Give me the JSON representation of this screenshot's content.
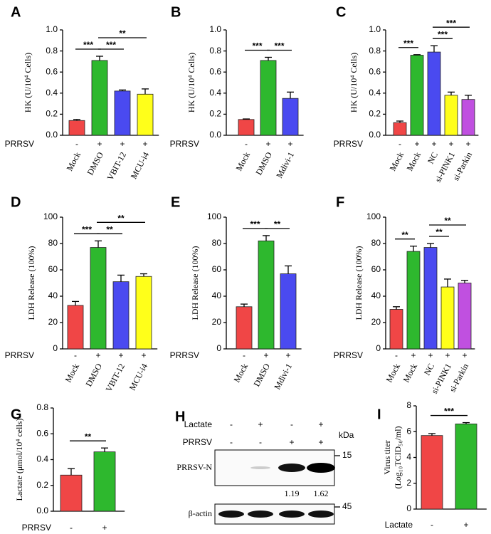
{
  "chart_data": [
    {
      "type": "bar",
      "panel_label": "A",
      "ylabel": "HK (U/10⁴ Cells)",
      "categories": [
        "Mock",
        "DMSO",
        "VBIT-12",
        "MCU-i4"
      ],
      "values": [
        0.14,
        0.71,
        0.42,
        0.39
      ],
      "errors": [
        0.01,
        0.04,
        0.01,
        0.05
      ],
      "colors": [
        "#f04646",
        "#2eb82e",
        "#4a4af0",
        "#ffff1a"
      ],
      "ylim": [
        0,
        1
      ],
      "yticks": [
        {
          "value": 0,
          "label": "0.0"
        },
        0.2,
        0.4,
        0.6,
        0.8,
        {
          "value": 1,
          "label": "1.0"
        }
      ],
      "treatment_label": "PRRSV",
      "treatment": [
        "-",
        "+",
        "+",
        "+"
      ],
      "significance": [
        {
          "from": 0,
          "to": 1,
          "label": "***"
        },
        {
          "from": 1,
          "to": 2,
          "label": "***"
        },
        {
          "from": 1,
          "to": 3,
          "label": "**"
        }
      ]
    },
    {
      "type": "bar",
      "panel_label": "B",
      "ylabel": "HK (U/10⁴ Cells)",
      "categories": [
        "Mock",
        "DMSO",
        "Mdivi-1"
      ],
      "values": [
        0.15,
        0.71,
        0.35
      ],
      "errors": [
        0.005,
        0.03,
        0.06
      ],
      "colors": [
        "#f04646",
        "#2eb82e",
        "#4a4af0"
      ],
      "ylim": [
        0,
        1
      ],
      "yticks": [
        {
          "value": 0,
          "label": "0.0"
        },
        0.2,
        0.4,
        0.6,
        0.8,
        {
          "value": 1,
          "label": "1.0"
        }
      ],
      "treatment_label": "PRRSV",
      "treatment": [
        "-",
        "+",
        "+"
      ],
      "significance": [
        {
          "from": 0,
          "to": 1,
          "label": "***"
        },
        {
          "from": 1,
          "to": 2,
          "label": "***"
        }
      ]
    },
    {
      "type": "bar",
      "panel_label": "C",
      "ylabel": "HK (U/10⁴ Cells)",
      "categories": [
        "Mock",
        "Mock",
        "NC",
        "si-PINK1",
        "si-Parkin"
      ],
      "values": [
        0.12,
        0.76,
        0.79,
        0.38,
        0.34
      ],
      "errors": [
        0.015,
        0.005,
        0.06,
        0.03,
        0.04
      ],
      "colors": [
        "#f04646",
        "#2eb82e",
        "#4a4af0",
        "#ffff1a",
        "#c050e0"
      ],
      "ylim": [
        0,
        1
      ],
      "yticks": [
        {
          "value": 0,
          "label": "0.0"
        },
        0.2,
        0.4,
        0.6,
        0.8,
        {
          "value": 1,
          "label": "1.0"
        }
      ],
      "treatment_label": "PRRSV",
      "treatment": [
        "-",
        "+",
        "+",
        "+",
        "+"
      ],
      "significance": [
        {
          "from": 0,
          "to": 1,
          "label": "***"
        },
        {
          "from": 2,
          "to": 3,
          "label": "***"
        },
        {
          "from": 2,
          "to": 4,
          "label": "***"
        }
      ]
    },
    {
      "type": "bar",
      "panel_label": "D",
      "ylabel": "LDH Release (100%)",
      "categories": [
        "Mock",
        "DMSO",
        "VBIT-12",
        "MCU-i4"
      ],
      "values": [
        33,
        77,
        51,
        55
      ],
      "errors": [
        3,
        5,
        5,
        2
      ],
      "colors": [
        "#f04646",
        "#2eb82e",
        "#4a4af0",
        "#ffff1a"
      ],
      "ylim": [
        0,
        100
      ],
      "yticks": [
        0,
        20,
        40,
        60,
        80,
        100
      ],
      "treatment_label": "PRRSV",
      "treatment": [
        "-",
        "+",
        "+",
        "+"
      ],
      "significance": [
        {
          "from": 0,
          "to": 1,
          "label": "***"
        },
        {
          "from": 1,
          "to": 2,
          "label": "**"
        },
        {
          "from": 1,
          "to": 3,
          "label": "**"
        }
      ]
    },
    {
      "type": "bar",
      "panel_label": "E",
      "ylabel": "LDH Release (100%)",
      "categories": [
        "Mock",
        "DMSO",
        "Mdivi-1"
      ],
      "values": [
        32,
        82,
        57
      ],
      "errors": [
        2,
        4,
        6
      ],
      "colors": [
        "#f04646",
        "#2eb82e",
        "#4a4af0"
      ],
      "ylim": [
        0,
        100
      ],
      "yticks": [
        0,
        20,
        40,
        60,
        80,
        100
      ],
      "treatment_label": "PRRSV",
      "treatment": [
        "-",
        "+",
        "+"
      ],
      "significance": [
        {
          "from": 0,
          "to": 1,
          "label": "***"
        },
        {
          "from": 1,
          "to": 2,
          "label": "**"
        }
      ]
    },
    {
      "type": "bar",
      "panel_label": "F",
      "ylabel": "LDH Release (100%)",
      "categories": [
        "Mock",
        "Mock",
        "NC",
        "si-PINK1",
        "si-Parkin"
      ],
      "values": [
        30,
        74,
        77,
        47,
        50
      ],
      "errors": [
        2,
        4,
        3,
        6,
        2
      ],
      "colors": [
        "#f04646",
        "#2eb82e",
        "#4a4af0",
        "#ffff1a",
        "#c050e0"
      ],
      "ylim": [
        0,
        100
      ],
      "yticks": [
        0,
        20,
        40,
        60,
        80,
        100
      ],
      "treatment_label": "PRRSV",
      "treatment": [
        "-",
        "+",
        "+",
        "+",
        "+"
      ],
      "significance": [
        {
          "from": 0,
          "to": 1,
          "label": "**"
        },
        {
          "from": 2,
          "to": 3,
          "label": "**"
        },
        {
          "from": 2,
          "to": 4,
          "label": "**"
        }
      ]
    },
    {
      "type": "bar",
      "panel_label": "G",
      "ylabel": "Lactate (μmol/10⁴ cells)",
      "values": [
        0.28,
        0.46
      ],
      "errors": [
        0.05,
        0.03
      ],
      "colors": [
        "#f04646",
        "#2eb82e"
      ],
      "ylim": [
        0,
        0.8
      ],
      "yticks": [
        {
          "value": 0,
          "label": "0.0"
        },
        0.2,
        0.4,
        0.6,
        0.8
      ],
      "treatment_label": "PRRSV",
      "treatment": [
        "-",
        "+"
      ],
      "significance": [
        {
          "from": 0,
          "to": 1,
          "label": "**"
        }
      ]
    },
    {
      "type": "bar",
      "panel_label": "I",
      "ylabel": [
        "Virus titer",
        "(Log₁₀TCID₅₀/ml)"
      ],
      "values": [
        5.7,
        6.6
      ],
      "errors": [
        0.15,
        0.1
      ],
      "colors": [
        "#f04646",
        "#2eb82e"
      ],
      "ylim": [
        0,
        8
      ],
      "yticks": [
        0,
        2,
        4,
        6,
        8
      ],
      "treatment_label": "Lactate",
      "treatment": [
        "-",
        "+"
      ],
      "significance": [
        {
          "from": 0,
          "to": 1,
          "label": "***"
        }
      ]
    }
  ],
  "blot": {
    "panel_label": "H",
    "rows": [
      {
        "label": "Lactate",
        "signs": [
          "-",
          "+",
          "-",
          "+"
        ]
      },
      {
        "label": "PRRSV",
        "signs": [
          "-",
          "-",
          "+",
          "+"
        ]
      }
    ],
    "unit": "kDa",
    "bands": [
      {
        "name": "PRRSV-N",
        "marker": "15",
        "quant": [
          "1.19",
          "1.62"
        ]
      },
      {
        "name": "β-actin",
        "marker": "45"
      }
    ]
  }
}
